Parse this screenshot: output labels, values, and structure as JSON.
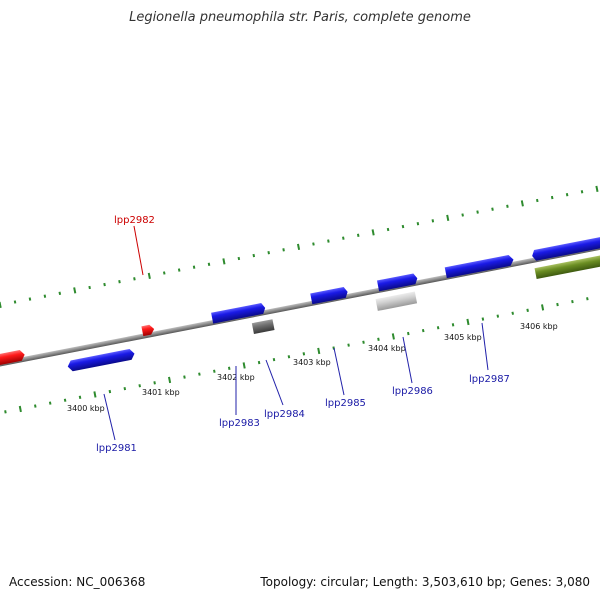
{
  "title": "Legionella pneumophila str. Paris, complete genome",
  "footer": {
    "accession": "Accession: NC_006368",
    "summary": "Topology: circular; Length: 3,503,610 bp; Genes: 3,080"
  },
  "colors": {
    "backbone": "#8c8c8c",
    "tick": "#2e8b2e",
    "gene_blue": "#1a1ae6",
    "gene_red": "#ff1a1a",
    "gene_gray": "#6e6e6e",
    "gene_lightgray": "#d0d0d0",
    "gene_olive": "#6b8e23",
    "label_blue": "#1a1aa6",
    "label_red": "#cc0000",
    "leader": "#2222aa"
  },
  "kbp_labels": [
    "3400 kbp",
    "3401 kbp",
    "3402 kbp",
    "3403 kbp",
    "3404 kbp",
    "3405 kbp",
    "3406 kbp"
  ],
  "gene_labels": [
    {
      "name": "lpp2981",
      "color": "label_blue"
    },
    {
      "name": "lpp2982",
      "color": "label_red"
    },
    {
      "name": "lpp2983",
      "color": "label_blue"
    },
    {
      "name": "lpp2984",
      "color": "label_blue"
    },
    {
      "name": "lpp2985",
      "color": "label_blue"
    },
    {
      "name": "lpp2986",
      "color": "label_blue"
    },
    {
      "name": "lpp2987",
      "color": "label_blue"
    }
  ]
}
